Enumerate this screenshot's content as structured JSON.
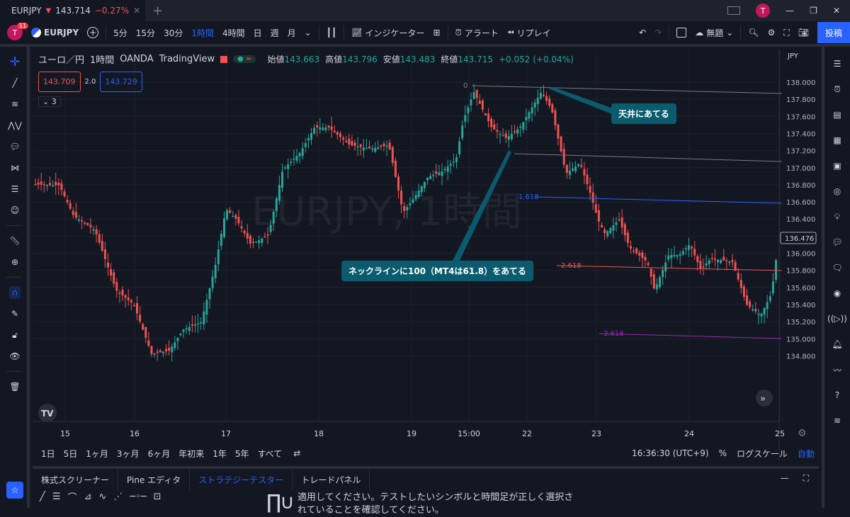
{
  "titlebar": {
    "tab_title": "EURJPY",
    "tab_price": "143.714",
    "tab_change": "−0.27%",
    "avatar": "T"
  },
  "toolbar": {
    "avatar": "T",
    "badge": "11",
    "symbol": "EURJPY",
    "intervals": [
      "5分",
      "15分",
      "30分",
      "1時間",
      "4時間",
      "日",
      "週",
      "月"
    ],
    "active_interval": "1時間",
    "indicator": "インジケーター",
    "alert": "アラート",
    "replay": "リプレイ",
    "layout": "無題",
    "post": "投稿"
  },
  "legend": {
    "title": "ユーロ／円",
    "interval": "1時間",
    "broker": "OANDA",
    "platform": "TradingView",
    "o_lbl": "始値",
    "o": "143.663",
    "h_lbl": "高値",
    "h": "143.796",
    "l_lbl": "安値",
    "l": "143.483",
    "c_lbl": "終値",
    "c": "143.715",
    "chg": "+0.052 (+0.04%)",
    "bid": "143.709",
    "spread": "2.0",
    "ask": "143.729",
    "collapse": "3"
  },
  "watermark": "EURJPY, 1時間",
  "currency": "JPY",
  "price_ticks": [
    "138.000",
    "137.800",
    "137.600",
    "137.400",
    "137.200",
    "137.000",
    "136.800",
    "136.600",
    "136.400",
    "136.200",
    "136.000",
    "135.800",
    "135.600",
    "135.400",
    "135.200",
    "135.000",
    "134.800"
  ],
  "last_price": "136.476",
  "time_ticks": [
    "15",
    "16",
    "17",
    "18",
    "19",
    "15:00",
    "22",
    "23",
    "24",
    "25"
  ],
  "fib": {
    "l0": "0",
    "l1": "1.618",
    "l2": "2.618",
    "l3": "3.618"
  },
  "annotations": {
    "top": "天井にあてる",
    "neck": "ネックラインに100（MT4は61.8）をあてる"
  },
  "ranges": [
    "1日",
    "5日",
    "1ヶ月",
    "3ヶ月",
    "6ヶ月",
    "年初来",
    "1年",
    "5年",
    "すべて"
  ],
  "bottom_right": {
    "time": "16:36:30 (UTC+9)",
    "pct": "%",
    "log": "ログスケール",
    "auto": "自動"
  },
  "panel": {
    "tabs": [
      "株式スクリーナー",
      "Pine エディタ",
      "ストラテジーテスター",
      "トレードパネル"
    ],
    "active": "ストラテジーテスター",
    "message1": "適用してください。テストしたいシンボルと時間足が正しく選択さ",
    "message2": "れていることを確認してください。"
  },
  "colors": {
    "up": "#26a69a",
    "down": "#ef5350",
    "accent": "#2962ff",
    "fib_blue": "#2962ff",
    "fib_red": "#ef5350",
    "fib_purple": "#9c27b0",
    "annot": "#0b5b6e"
  }
}
